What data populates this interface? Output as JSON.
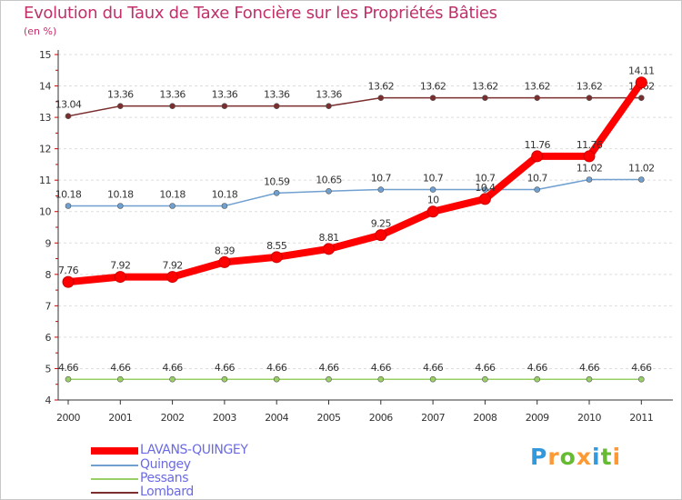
{
  "header": {
    "title": "Evolution du Taux de Taxe Foncière sur les Propriétés Bâties",
    "unit": "(en %)"
  },
  "chart_data": {
    "type": "line",
    "title": "Evolution du Taux de Taxe Foncière sur les Propriétés Bâties",
    "ylabel": "(en %)",
    "xlabel": "",
    "categories": [
      "2000",
      "2001",
      "2002",
      "2003",
      "2004",
      "2005",
      "2006",
      "2007",
      "2008",
      "2009",
      "2010",
      "2011"
    ],
    "ylim": [
      4,
      15
    ],
    "yticks": [
      "4",
      "5",
      "6",
      "7",
      "8",
      "9",
      "10",
      "11",
      "12",
      "13",
      "14",
      "15"
    ],
    "grid": "horizontal-dashed",
    "legend_position": "bottom-left",
    "series": [
      {
        "name": "Lombard",
        "color": "#7b2e2e",
        "values": [
          13.04,
          13.36,
          13.36,
          13.36,
          13.36,
          13.36,
          13.62,
          13.62,
          13.62,
          13.62,
          13.62,
          13.62
        ],
        "labels": [
          "13.04",
          "13.36",
          "13.36",
          "13.36",
          "13.36",
          "13.36",
          "13.62",
          "13.62",
          "13.62",
          "13.62",
          "13.62",
          "13.62"
        ]
      },
      {
        "name": "Quingey",
        "color": "#6fa0d0",
        "values": [
          10.18,
          10.18,
          10.18,
          10.18,
          10.59,
          10.65,
          10.7,
          10.7,
          10.7,
          10.7,
          11.02,
          11.02
        ],
        "labels": [
          "10.18",
          "10.18",
          "10.18",
          "10.18",
          "10.59",
          "10.65",
          "10.7",
          "10.7",
          "10.7",
          "10.7",
          "11.02",
          "11.02"
        ]
      },
      {
        "name": "Pessans",
        "color": "#99d066",
        "values": [
          4.66,
          4.66,
          4.66,
          4.66,
          4.66,
          4.66,
          4.66,
          4.66,
          4.66,
          4.66,
          4.66,
          4.66
        ],
        "labels": [
          "4.66",
          "4.66",
          "4.66",
          "4.66",
          "4.66",
          "4.66",
          "4.66",
          "4.66",
          "4.66",
          "4.66",
          "4.66",
          "4.66"
        ]
      },
      {
        "name": "LAVANS-QUINGEY",
        "color": "#ff0000",
        "values": [
          7.76,
          7.92,
          7.92,
          8.39,
          8.55,
          8.81,
          9.25,
          10,
          10.4,
          11.76,
          11.76,
          14.11
        ],
        "labels": [
          "7.76",
          "7.92",
          "7.92",
          "8.39",
          "8.55",
          "8.81",
          "9.25",
          "10",
          "10.4",
          "11.76",
          "11.76",
          "14.11"
        ]
      }
    ]
  },
  "legend": {
    "items": [
      {
        "label": "LAVANS-QUINGEY",
        "color": "#ff0000"
      },
      {
        "label": "Quingey",
        "color": "#6fa0d0"
      },
      {
        "label": "Pessans",
        "color": "#99d066"
      },
      {
        "label": "Lombard",
        "color": "#7b2e2e"
      }
    ]
  },
  "logo": {
    "letters": [
      "P",
      "r",
      "o",
      "x",
      "i",
      "t",
      "i"
    ],
    "colors": [
      "#3399dd",
      "#ff9933",
      "#66bb33",
      "#ff9933",
      "#3399dd",
      "#66bb33",
      "#ff9933"
    ]
  }
}
